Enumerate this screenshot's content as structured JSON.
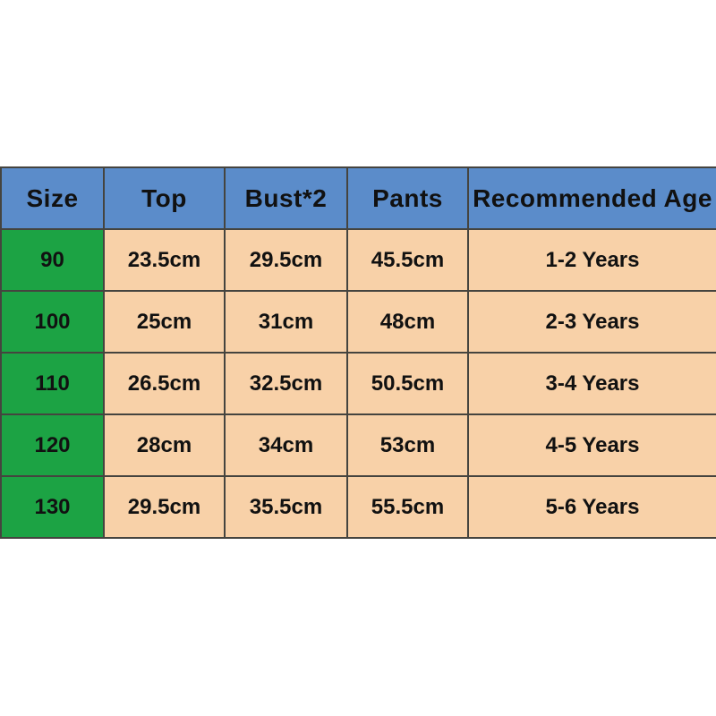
{
  "chart_data": {
    "type": "table",
    "columns": [
      "Size",
      "Top",
      "Bust*2",
      "Pants",
      "Recommended Age"
    ],
    "rows": [
      [
        "90",
        "23.5cm",
        "29.5cm",
        "45.5cm",
        "1-2 Years"
      ],
      [
        "100",
        "25cm",
        "31cm",
        "48cm",
        "2-3 Years"
      ],
      [
        "110",
        "26.5cm",
        "32.5cm",
        "50.5cm",
        "3-4 Years"
      ],
      [
        "120",
        "28cm",
        "34cm",
        "53cm",
        "4-5 Years"
      ],
      [
        "130",
        "29.5cm",
        "35.5cm",
        "55.5cm",
        "5-6 Years"
      ]
    ]
  },
  "colors": {
    "page_bg": "#ffffff",
    "header_bg": "#5b8cca",
    "size_col_bg": "#1ca344",
    "cell_bg": "#f8d1a8",
    "border": "#45443f",
    "text": "#111111"
  }
}
